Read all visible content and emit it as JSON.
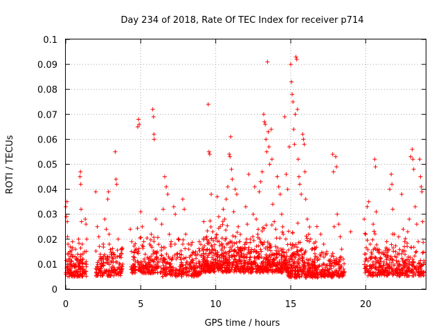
{
  "chart_data": {
    "type": "scatter",
    "title": "Day 234 of 2018, Rate Of TEC Index for receiver p714",
    "xlabel": "GPS time / hours",
    "ylabel": "ROTI / TECUs",
    "xlim": [
      0,
      24
    ],
    "ylim": [
      0,
      0.1
    ],
    "x_ticks": [
      0,
      5,
      10,
      15,
      20
    ],
    "y_ticks": [
      0,
      0.01,
      0.02,
      0.03,
      0.04,
      0.05,
      0.06,
      0.07,
      0.08,
      0.09,
      0.1
    ],
    "y_tick_labels": [
      "0",
      "0.01",
      "0.02",
      "0.03",
      "0.04",
      "0.05",
      "0.06",
      "0.07",
      "0.08",
      "0.09",
      "0.1"
    ],
    "grid": true,
    "marker": "+",
    "color": "#ff0000",
    "series": [
      {
        "points": [
          [
            0.0,
            0.033
          ],
          [
            0.05,
            0.029
          ],
          [
            0.1,
            0.027
          ],
          [
            0.08,
            0.035
          ],
          [
            0.12,
            0.021
          ],
          [
            0.15,
            0.018
          ],
          [
            0.2,
            0.012
          ],
          [
            0.25,
            0.008
          ],
          [
            0.3,
            0.015
          ],
          [
            0.35,
            0.011
          ],
          [
            0.4,
            0.006
          ],
          [
            0.45,
            0.019
          ],
          [
            0.5,
            0.013
          ],
          [
            0.55,
            0.009
          ],
          [
            0.6,
            0.007
          ],
          [
            0.65,
            0.016
          ],
          [
            0.7,
            0.012
          ],
          [
            0.75,
            0.005
          ],
          [
            0.8,
            0.014
          ],
          [
            0.85,
            0.02
          ],
          [
            0.9,
            0.01
          ],
          [
            0.95,
            0.045
          ],
          [
            0.98,
            0.047
          ],
          [
            1.0,
            0.042
          ],
          [
            1.02,
            0.032
          ],
          [
            1.05,
            0.027
          ],
          [
            1.1,
            0.018
          ],
          [
            1.15,
            0.012
          ],
          [
            1.2,
            0.008
          ],
          [
            1.25,
            0.015
          ],
          [
            1.3,
            0.028
          ],
          [
            1.35,
            0.026
          ],
          [
            1.4,
            0.02
          ],
          [
            2.0,
            0.039
          ],
          [
            2.1,
            0.025
          ],
          [
            2.2,
            0.021
          ],
          [
            2.3,
            0.014
          ],
          [
            2.4,
            0.009
          ],
          [
            2.5,
            0.018
          ],
          [
            2.6,
            0.028
          ],
          [
            2.7,
            0.024
          ],
          [
            2.8,
            0.036
          ],
          [
            2.85,
            0.039
          ],
          [
            2.9,
            0.018
          ],
          [
            3.0,
            0.011
          ],
          [
            3.1,
            0.007
          ],
          [
            3.2,
            0.014
          ],
          [
            3.3,
            0.055
          ],
          [
            3.35,
            0.044
          ],
          [
            3.4,
            0.042
          ],
          [
            3.5,
            0.02
          ],
          [
            3.6,
            0.013
          ],
          [
            3.7,
            0.016
          ],
          [
            3.8,
            0.01
          ],
          [
            4.3,
            0.024
          ],
          [
            4.4,
            0.019
          ],
          [
            4.5,
            0.013
          ],
          [
            4.6,
            0.009
          ],
          [
            4.7,
            0.016
          ],
          [
            4.8,
            0.065
          ],
          [
            4.85,
            0.068
          ],
          [
            4.9,
            0.066
          ],
          [
            5.0,
            0.031
          ],
          [
            5.1,
            0.025
          ],
          [
            5.2,
            0.019
          ],
          [
            5.3,
            0.014
          ],
          [
            5.4,
            0.009
          ],
          [
            5.5,
            0.012
          ],
          [
            5.6,
            0.018
          ],
          [
            5.7,
            0.022
          ],
          [
            5.8,
            0.072
          ],
          [
            5.85,
            0.069
          ],
          [
            5.88,
            0.062
          ],
          [
            5.9,
            0.06
          ],
          [
            6.0,
            0.028
          ],
          [
            6.1,
            0.015
          ],
          [
            6.2,
            0.011
          ],
          [
            6.4,
            0.026
          ],
          [
            6.5,
            0.032
          ],
          [
            6.6,
            0.045
          ],
          [
            6.7,
            0.041
          ],
          [
            6.8,
            0.038
          ],
          [
            6.9,
            0.022
          ],
          [
            7.0,
            0.018
          ],
          [
            7.1,
            0.012
          ],
          [
            7.2,
            0.033
          ],
          [
            7.3,
            0.03
          ],
          [
            7.5,
            0.02
          ],
          [
            7.6,
            0.014
          ],
          [
            7.7,
            0.009
          ],
          [
            7.8,
            0.036
          ],
          [
            7.9,
            0.032
          ],
          [
            8.0,
            0.022
          ],
          [
            8.2,
            0.016
          ],
          [
            8.4,
            0.011
          ],
          [
            8.6,
            0.008
          ],
          [
            8.8,
            0.014
          ],
          [
            8.9,
            0.019
          ],
          [
            9.2,
            0.027
          ],
          [
            9.4,
            0.021
          ],
          [
            9.5,
            0.074
          ],
          [
            9.55,
            0.055
          ],
          [
            9.6,
            0.054
          ],
          [
            9.7,
            0.038
          ],
          [
            9.8,
            0.023
          ],
          [
            9.9,
            0.016
          ],
          [
            10.0,
            0.012
          ],
          [
            10.1,
            0.037
          ],
          [
            10.2,
            0.029
          ],
          [
            10.3,
            0.025
          ],
          [
            10.4,
            0.018
          ],
          [
            10.5,
            0.032
          ],
          [
            10.6,
            0.028
          ],
          [
            10.7,
            0.036
          ],
          [
            10.8,
            0.041
          ],
          [
            10.9,
            0.054
          ],
          [
            10.95,
            0.053
          ],
          [
            11.0,
            0.061
          ],
          [
            11.05,
            0.048
          ],
          [
            11.1,
            0.044
          ],
          [
            11.2,
            0.031
          ],
          [
            11.3,
            0.04
          ],
          [
            11.4,
            0.038
          ],
          [
            11.5,
            0.025
          ],
          [
            11.6,
            0.019
          ],
          [
            11.7,
            0.014
          ],
          [
            12.0,
            0.033
          ],
          [
            12.1,
            0.026
          ],
          [
            12.2,
            0.046
          ],
          [
            12.3,
            0.02
          ],
          [
            12.4,
            0.015
          ],
          [
            12.5,
            0.03
          ],
          [
            12.6,
            0.041
          ],
          [
            12.7,
            0.028
          ],
          [
            12.8,
            0.022
          ],
          [
            12.9,
            0.039
          ],
          [
            13.0,
            0.043
          ],
          [
            13.1,
            0.047
          ],
          [
            13.2,
            0.07
          ],
          [
            13.25,
            0.067
          ],
          [
            13.3,
            0.066
          ],
          [
            13.35,
            0.06
          ],
          [
            13.4,
            0.055
          ],
          [
            13.45,
            0.091
          ],
          [
            13.5,
            0.063
          ],
          [
            13.55,
            0.057
          ],
          [
            13.6,
            0.05
          ],
          [
            13.7,
            0.064
          ],
          [
            13.75,
            0.052
          ],
          [
            13.8,
            0.034
          ],
          [
            13.9,
            0.027
          ],
          [
            14.0,
            0.024
          ],
          [
            14.1,
            0.045
          ],
          [
            14.2,
            0.041
          ],
          [
            14.3,
            0.038
          ],
          [
            14.4,
            0.03
          ],
          [
            14.5,
            0.022
          ],
          [
            14.6,
            0.069
          ],
          [
            14.7,
            0.046
          ],
          [
            14.8,
            0.04
          ],
          [
            14.9,
            0.057
          ],
          [
            15.0,
            0.09
          ],
          [
            15.05,
            0.083
          ],
          [
            15.1,
            0.078
          ],
          [
            15.15,
            0.075
          ],
          [
            15.2,
            0.064
          ],
          [
            15.25,
            0.058
          ],
          [
            15.3,
            0.07
          ],
          [
            15.35,
            0.093
          ],
          [
            15.4,
            0.092
          ],
          [
            15.45,
            0.072
          ],
          [
            15.5,
            0.052
          ],
          [
            15.55,
            0.045
          ],
          [
            15.6,
            0.042
          ],
          [
            15.7,
            0.038
          ],
          [
            15.8,
            0.062
          ],
          [
            15.85,
            0.06
          ],
          [
            15.9,
            0.058
          ],
          [
            15.95,
            0.047
          ],
          [
            16.0,
            0.036
          ],
          [
            16.1,
            0.028
          ],
          [
            16.2,
            0.022
          ],
          [
            16.4,
            0.016
          ],
          [
            16.6,
            0.012
          ],
          [
            16.8,
            0.009
          ],
          [
            17.0,
            0.022
          ],
          [
            17.2,
            0.018
          ],
          [
            17.4,
            0.015
          ],
          [
            17.6,
            0.011
          ],
          [
            17.8,
            0.054
          ],
          [
            17.85,
            0.047
          ],
          [
            17.9,
            0.025
          ],
          [
            18.0,
            0.053
          ],
          [
            18.05,
            0.049
          ],
          [
            18.1,
            0.03
          ],
          [
            18.2,
            0.026
          ],
          [
            18.3,
            0.021
          ],
          [
            18.4,
            0.016
          ],
          [
            18.5,
            0.012
          ],
          [
            19.0,
            0.023
          ],
          [
            19.9,
            0.028
          ],
          [
            20.0,
            0.022
          ],
          [
            20.1,
            0.033
          ],
          [
            20.2,
            0.035
          ],
          [
            20.3,
            0.018
          ],
          [
            20.4,
            0.013
          ],
          [
            20.5,
            0.026
          ],
          [
            20.6,
            0.052
          ],
          [
            20.65,
            0.049
          ],
          [
            20.7,
            0.031
          ],
          [
            20.8,
            0.016
          ],
          [
            20.9,
            0.011
          ],
          [
            21.0,
            0.009
          ],
          [
            21.2,
            0.014
          ],
          [
            21.4,
            0.019
          ],
          [
            21.6,
            0.04
          ],
          [
            21.7,
            0.046
          ],
          [
            21.75,
            0.042
          ],
          [
            21.8,
            0.032
          ],
          [
            21.9,
            0.022
          ],
          [
            22.0,
            0.015
          ],
          [
            22.2,
            0.011
          ],
          [
            22.4,
            0.038
          ],
          [
            22.5,
            0.024
          ],
          [
            22.6,
            0.019
          ],
          [
            22.8,
            0.023
          ],
          [
            22.9,
            0.028
          ],
          [
            23.0,
            0.053
          ],
          [
            23.1,
            0.056
          ],
          [
            23.15,
            0.052
          ],
          [
            23.2,
            0.048
          ],
          [
            23.3,
            0.033
          ],
          [
            23.4,
            0.026
          ],
          [
            23.5,
            0.019
          ],
          [
            23.6,
            0.052
          ],
          [
            23.65,
            0.045
          ],
          [
            23.7,
            0.041
          ],
          [
            23.75,
            0.039
          ],
          [
            23.8,
            0.027
          ]
        ],
        "dense_bands": [
          {
            "x0": 0.0,
            "x1": 1.4,
            "y0": 0.003,
            "y1": 0.022,
            "n": 130
          },
          {
            "x0": 2.0,
            "x1": 3.8,
            "y0": 0.003,
            "y1": 0.024,
            "n": 150
          },
          {
            "x0": 4.3,
            "x1": 6.2,
            "y0": 0.004,
            "y1": 0.026,
            "n": 170
          },
          {
            "x0": 6.3,
            "x1": 9.0,
            "y0": 0.003,
            "y1": 0.022,
            "n": 230
          },
          {
            "x0": 9.0,
            "x1": 11.8,
            "y0": 0.004,
            "y1": 0.03,
            "n": 360
          },
          {
            "x0": 11.8,
            "x1": 14.8,
            "y0": 0.004,
            "y1": 0.029,
            "n": 380
          },
          {
            "x0": 14.8,
            "x1": 16.8,
            "y0": 0.002,
            "y1": 0.027,
            "n": 260
          },
          {
            "x0": 16.8,
            "x1": 18.6,
            "y0": 0.003,
            "y1": 0.02,
            "n": 150
          },
          {
            "x0": 19.9,
            "x1": 22.0,
            "y0": 0.003,
            "y1": 0.025,
            "n": 190
          },
          {
            "x0": 22.0,
            "x1": 23.9,
            "y0": 0.003,
            "y1": 0.024,
            "n": 170
          }
        ]
      }
    ]
  }
}
